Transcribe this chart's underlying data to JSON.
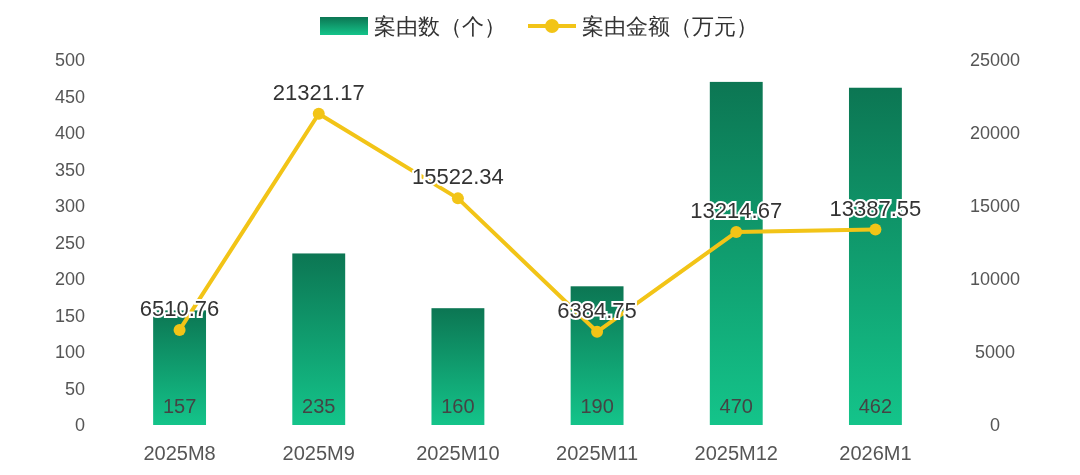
{
  "chart_data": {
    "type": "bar",
    "categories": [
      "2025M8",
      "2025M9",
      "2025M10",
      "2025M11",
      "2025M12",
      "2026M1"
    ],
    "series": [
      {
        "name": "案由数（个）",
        "color": "#14c48a",
        "values": [
          157,
          235,
          160,
          190,
          470,
          462
        ]
      },
      {
        "name": "案由金额（万元）",
        "type": "line",
        "axis": "y2",
        "color": "#f2c417",
        "values": [
          6510.76,
          21321.17,
          15522.34,
          6384.75,
          13214.67,
          13387.55
        ]
      }
    ],
    "ylim": [
      0,
      500
    ],
    "yticks": [
      0,
      50,
      100,
      150,
      200,
      250,
      300,
      350,
      400,
      450,
      500
    ],
    "y2lim": [
      0,
      25000
    ],
    "y2ticks": [
      0,
      5000,
      10000,
      15000,
      20000,
      25000
    ],
    "data_labels": true,
    "legend": "top",
    "marker": "circle",
    "grid": false
  }
}
